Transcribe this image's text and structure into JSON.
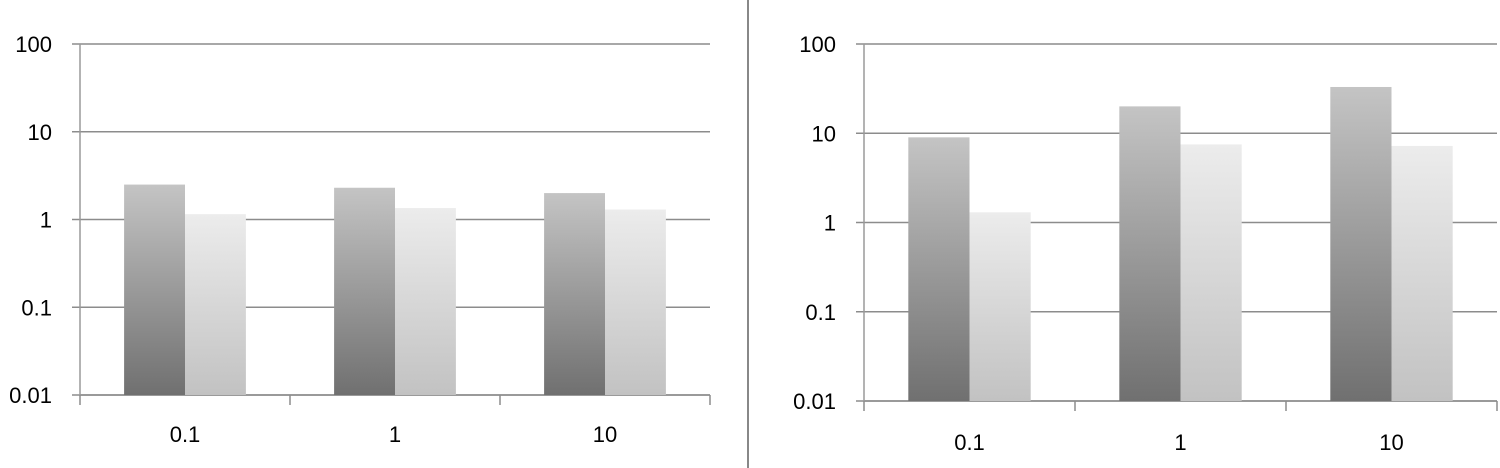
{
  "chart_data": [
    {
      "type": "bar",
      "title": "",
      "xlabel": "",
      "ylabel": "",
      "y_scale": "log",
      "ylim": [
        0.01,
        100
      ],
      "y_ticks": [
        "0.01",
        "0.1",
        "1",
        "10",
        "100"
      ],
      "categories": [
        "0.1",
        "1",
        "10"
      ],
      "grid": true,
      "legend": "none",
      "series": [
        {
          "values": [
            2.5,
            2.3,
            2.0
          ],
          "color": "#9a9a9a"
        },
        {
          "values": [
            1.15,
            1.35,
            1.3
          ],
          "color": "#d8d8d8"
        }
      ]
    },
    {
      "type": "bar",
      "title": "",
      "xlabel": "",
      "ylabel": "",
      "y_scale": "log",
      "ylim": [
        0.01,
        100
      ],
      "y_ticks": [
        "0.01",
        "0.1",
        "1",
        "10",
        "100"
      ],
      "categories": [
        "0.1",
        "1",
        "10"
      ],
      "grid": true,
      "legend": "none",
      "series": [
        {
          "values": [
            9.0,
            20.0,
            33.0
          ],
          "color": "#9a9a9a"
        },
        {
          "values": [
            1.3,
            7.5,
            7.2
          ],
          "color": "#d8d8d8"
        }
      ]
    }
  ]
}
